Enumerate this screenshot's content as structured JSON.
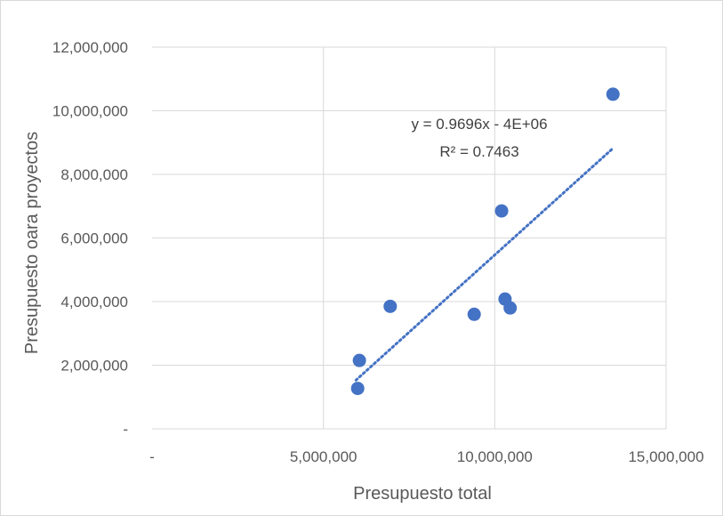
{
  "chart_data": {
    "type": "scatter",
    "title": "",
    "xlabel": "Presupuesto total",
    "ylabel": "Presupuesto oara proyectos",
    "xlim": [
      0,
      15000000
    ],
    "ylim": [
      0,
      12000000
    ],
    "x_ticks": [
      {
        "value": 0,
        "label": "-"
      },
      {
        "value": 5000000,
        "label": "5,000,000"
      },
      {
        "value": 10000000,
        "label": "10,000,000"
      },
      {
        "value": 15000000,
        "label": "15,000,000"
      }
    ],
    "y_ticks": [
      {
        "value": 0,
        "label": "-"
      },
      {
        "value": 2000000,
        "label": "2,000,000"
      },
      {
        "value": 4000000,
        "label": "4,000,000"
      },
      {
        "value": 6000000,
        "label": "6,000,000"
      },
      {
        "value": 8000000,
        "label": "8,000,000"
      },
      {
        "value": 10000000,
        "label": "10,000,000"
      },
      {
        "value": 12000000,
        "label": "12,000,000"
      }
    ],
    "grid": {
      "vertical": true,
      "horizontal": true
    },
    "marker_color": "#4472c4",
    "points": [
      {
        "x": 6000000,
        "y": 1270000
      },
      {
        "x": 6050000,
        "y": 2150000
      },
      {
        "x": 6950000,
        "y": 3850000
      },
      {
        "x": 9400000,
        "y": 3600000
      },
      {
        "x": 10200000,
        "y": 6850000
      },
      {
        "x": 10300000,
        "y": 4080000
      },
      {
        "x": 10450000,
        "y": 3800000
      },
      {
        "x": 13450000,
        "y": 10520000
      }
    ],
    "trendline": {
      "type": "linear",
      "style": "dotted",
      "x_range": [
        5950000,
        13450000
      ],
      "y_range": [
        1530000,
        8820000
      ],
      "equation_label": "y = 0.9696x - 4E+06",
      "r2_label": "R² = 0.7463"
    }
  }
}
